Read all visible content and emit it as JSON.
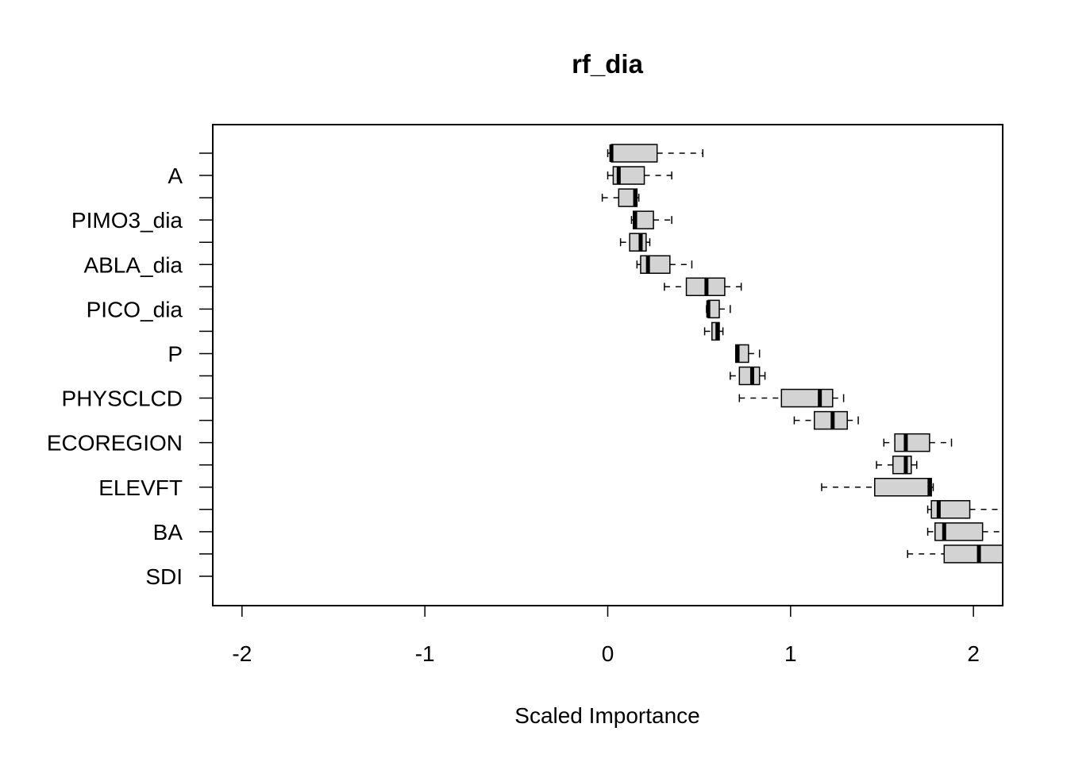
{
  "chart_data": {
    "type": "boxplot",
    "title": "rf_dia",
    "xlabel": "Scaled Importance",
    "ylabel": "",
    "xlim": [
      -2.16,
      2.16
    ],
    "xticks": [
      -2,
      -1,
      0,
      1,
      2
    ],
    "xtick_labels": [
      "-2",
      "-1",
      "0",
      "1",
      "2"
    ],
    "orientation": "horizontal",
    "box_fill": "#d3d3d3",
    "categories": [
      "",
      "A",
      "",
      "PIMO3_dia",
      "",
      "ABLA_dia",
      "",
      "PICO_dia",
      "",
      "P",
      "",
      "PHYSCLCD",
      "",
      "ECOREGION",
      "",
      "ELEVFT",
      "",
      "BA",
      "",
      "SDI"
    ],
    "boxes": [
      {
        "whislo": 0.0,
        "q1": 0.02,
        "med": 0.02,
        "q3": 0.27,
        "whishi": 0.52
      },
      {
        "whislo": 0.0,
        "q1": 0.03,
        "med": 0.06,
        "q3": 0.2,
        "whishi": 0.35
      },
      {
        "whislo": -0.03,
        "q1": 0.06,
        "med": 0.15,
        "q3": 0.16,
        "whishi": 0.17
      },
      {
        "whislo": 0.13,
        "q1": 0.14,
        "med": 0.15,
        "q3": 0.25,
        "whishi": 0.35
      },
      {
        "whislo": 0.07,
        "q1": 0.12,
        "med": 0.18,
        "q3": 0.21,
        "whishi": 0.23
      },
      {
        "whislo": 0.16,
        "q1": 0.18,
        "med": 0.22,
        "q3": 0.34,
        "whishi": 0.46
      },
      {
        "whislo": 0.31,
        "q1": 0.43,
        "med": 0.54,
        "q3": 0.64,
        "whishi": 0.73
      },
      {
        "whislo": 0.54,
        "q1": 0.55,
        "med": 0.55,
        "q3": 0.61,
        "whishi": 0.67
      },
      {
        "whislo": 0.53,
        "q1": 0.57,
        "med": 0.6,
        "q3": 0.61,
        "whishi": 0.63
      },
      {
        "whislo": 0.7,
        "q1": 0.7,
        "med": 0.71,
        "q3": 0.77,
        "whishi": 0.83
      },
      {
        "whislo": 0.67,
        "q1": 0.72,
        "med": 0.79,
        "q3": 0.83,
        "whishi": 0.86
      },
      {
        "whislo": 0.72,
        "q1": 0.95,
        "med": 1.16,
        "q3": 1.23,
        "whishi": 1.29
      },
      {
        "whislo": 1.02,
        "q1": 1.13,
        "med": 1.23,
        "q3": 1.31,
        "whishi": 1.37
      },
      {
        "whislo": 1.51,
        "q1": 1.57,
        "med": 1.63,
        "q3": 1.76,
        "whishi": 1.88
      },
      {
        "whislo": 1.47,
        "q1": 1.56,
        "med": 1.63,
        "q3": 1.66,
        "whishi": 1.69
      },
      {
        "whislo": 1.17,
        "q1": 1.46,
        "med": 1.76,
        "q3": 1.77,
        "whishi": 1.78
      },
      {
        "whislo": 1.75,
        "q1": 1.77,
        "med": 1.81,
        "q3": 1.98,
        "whishi": 2.16
      },
      {
        "whislo": 1.75,
        "q1": 1.79,
        "med": 1.84,
        "q3": 2.05,
        "whishi": 2.16
      },
      {
        "whislo": 1.64,
        "q1": 1.84,
        "med": 2.03,
        "q3": 2.16,
        "whishi": 2.16
      },
      null
    ]
  }
}
